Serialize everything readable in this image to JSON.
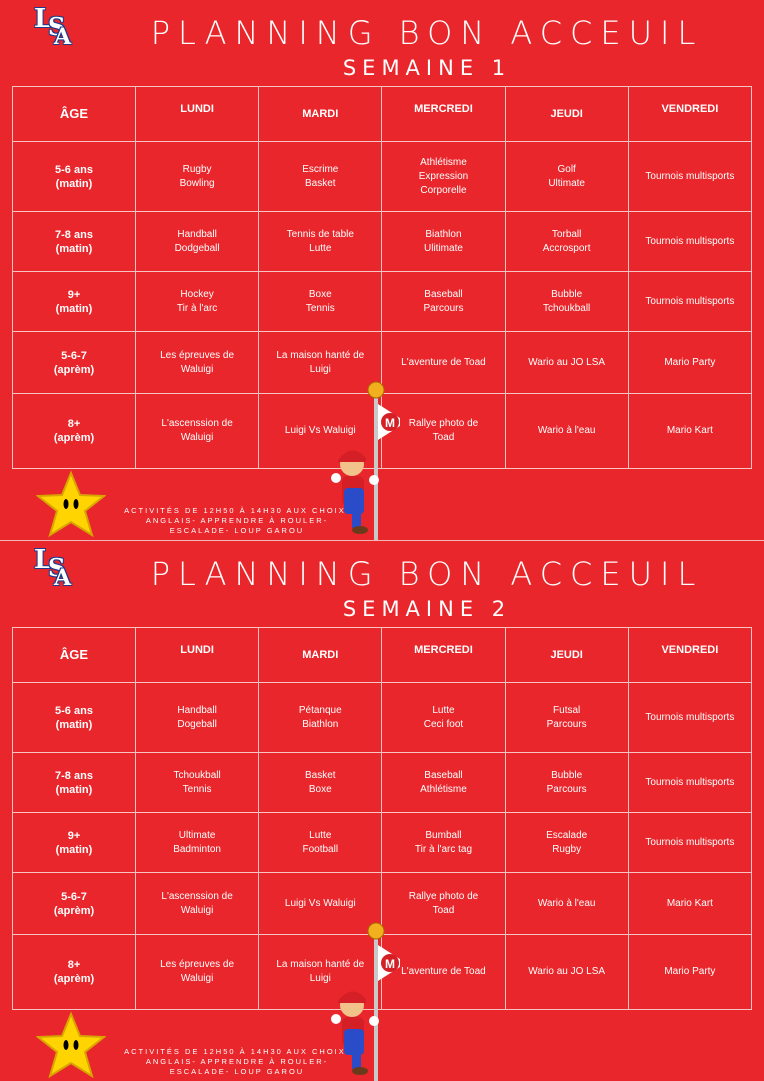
{
  "weeks": [
    {
      "title": "PLANNING BON ACCEUIL",
      "subtitle": "SEMAINE 1",
      "headers": [
        "ÂGE",
        "LUNDI",
        "MARDI",
        "MERCREDI",
        "JEUDI",
        "VENDREDI"
      ],
      "rows": [
        {
          "age": [
            "5-6 ans",
            "(matin)"
          ],
          "cells": [
            [
              "Rugby",
              "Bowling"
            ],
            [
              "Escrime",
              "Basket"
            ],
            [
              "Athlétisme",
              "Expression",
              "Corporelle"
            ],
            [
              "Golf",
              "Ultimate"
            ],
            [
              "Tournois multisports"
            ]
          ]
        },
        {
          "age": [
            "7-8 ans",
            "(matin)"
          ],
          "cells": [
            [
              "Handball",
              "Dodgeball"
            ],
            [
              "Tennis de table",
              "Lutte"
            ],
            [
              "Biathlon",
              "Ulitimate"
            ],
            [
              "Torball",
              "Accrosport"
            ],
            [
              "Tournois multisports"
            ]
          ]
        },
        {
          "age": [
            "9+",
            "(matin)"
          ],
          "cells": [
            [
              "Hockey",
              "Tir à l'arc"
            ],
            [
              "Boxe",
              "Tennis"
            ],
            [
              "Baseball",
              "Parcours"
            ],
            [
              "Bubble",
              "Tchoukball"
            ],
            [
              "Tournois multisports"
            ]
          ]
        },
        {
          "age": [
            "5-6-7",
            "(aprèm)"
          ],
          "cells": [
            [
              "Les épreuves de",
              "Waluigi"
            ],
            [
              "La maison hanté de",
              "Luigi"
            ],
            [
              "L'aventure de Toad"
            ],
            [
              "Wario au JO LSA"
            ],
            [
              "Mario Party"
            ]
          ]
        },
        {
          "age": [
            "8+",
            "(aprèm)"
          ],
          "cells": [
            [
              "L'ascenssion de",
              "Waluigi"
            ],
            [
              "Luigi Vs Waluigi"
            ],
            [
              "Rallye photo de",
              "Toad"
            ],
            [
              "Wario à l'eau"
            ],
            [
              "Mario Kart"
            ]
          ]
        }
      ],
      "activities": [
        "ACTIVITÉS DE 12H50 À 14H30 AUX CHOIX:",
        "ANGLAIS- APPRENDRE À ROULER-",
        "ESCALADE- LOUP GAROU"
      ]
    },
    {
      "title": "PLANNING BON ACCEUIL",
      "subtitle": "SEMAINE 2",
      "headers": [
        "ÂGE",
        "LUNDI",
        "MARDI",
        "MERCREDI",
        "JEUDI",
        "VENDREDI"
      ],
      "rows": [
        {
          "age": [
            "5-6 ans",
            "(matin)"
          ],
          "cells": [
            [
              "Handball",
              "Dogeball"
            ],
            [
              "Pétanque",
              "Biathlon"
            ],
            [
              "Lutte",
              "Ceci foot"
            ],
            [
              "Futsal",
              "Parcours"
            ],
            [
              "Tournois multisports"
            ]
          ]
        },
        {
          "age": [
            "7-8 ans",
            "(matin)"
          ],
          "cells": [
            [
              "Tchoukball",
              "Tennis"
            ],
            [
              "Basket",
              "Boxe"
            ],
            [
              "Baseball",
              "Athlétisme"
            ],
            [
              "Bubble",
              "Parcours"
            ],
            [
              "Tournois multisports"
            ]
          ]
        },
        {
          "age": [
            "9+",
            "(matin)"
          ],
          "cells": [
            [
              "Ultimate",
              "Badminton"
            ],
            [
              "Lutte",
              "Football"
            ],
            [
              "Bumball",
              "Tir à l'arc tag"
            ],
            [
              "Escalade",
              "Rugby"
            ],
            [
              "Tournois multisports"
            ]
          ]
        },
        {
          "age": [
            "5-6-7",
            "(aprèm)"
          ],
          "cells": [
            [
              "L'ascenssion de",
              "Waluigi"
            ],
            [
              "Luigi Vs Waluigi"
            ],
            [
              "Rallye photo de",
              "Toad"
            ],
            [
              "Wario à l'eau"
            ],
            [
              "Mario Kart"
            ]
          ]
        },
        {
          "age": [
            "8+",
            "(aprèm)"
          ],
          "cells": [
            [
              "Les épreuves de",
              "Waluigi"
            ],
            [
              "La maison hanté de",
              "Luigi"
            ],
            [
              "L'aventure de Toad"
            ],
            [
              "Wario au JO LSA"
            ],
            [
              "Mario Party"
            ]
          ]
        }
      ],
      "activities": [
        "ACTIVITÉS DE 12H50 À 14H30 AUX CHOIX:",
        "ANGLAIS- APPRENDRE À ROULER-",
        "ESCALADE- LOUP GAROU"
      ]
    }
  ],
  "logo_text": "LSA",
  "colors": {
    "background": "#e8262b",
    "grid": "#f7c2c2",
    "text": "#ffffff",
    "logo_outline": "#1e3a8a",
    "star": "#ffd400"
  }
}
